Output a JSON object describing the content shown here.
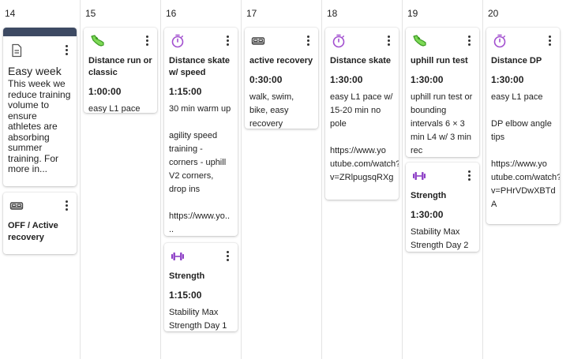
{
  "days": [
    "14",
    "15",
    "16",
    "17",
    "18",
    "19",
    "20"
  ],
  "colors": {
    "run": "#5bc236",
    "timer": "#a24fcf",
    "strength": "#8d3fc6",
    "bed": "#444444",
    "note_header": "#3d4a63"
  },
  "note": {
    "icon": "document-icon",
    "title": "Easy week",
    "body": "This week we reduce training volume to ensure athletes are absorbing summer training. For more in..."
  },
  "cards": {
    "d14_off": {
      "icon": "bed-icon",
      "title": "OFF / Active recovery"
    },
    "d15_run": {
      "icon": "running-shoe-icon",
      "title": "Distance run or classic",
      "duration": "1:00:00",
      "desc": "easy L1 pace"
    },
    "d16_skate": {
      "icon": "stopwatch-icon",
      "title": "Distance skate w/ speed",
      "duration": "1:15:00",
      "desc": "30 min warm up\n\nagility speed training - corners - uphill V2 corners, drop ins\n\nhttps://www.yo..\n.."
    },
    "d16_strength": {
      "icon": "dumbbell-icon",
      "title": "Strength",
      "duration": "1:15:00",
      "desc": "Stability Max Strength Day 1"
    },
    "d17_recovery": {
      "icon": "bed-icon",
      "title": "active recovery",
      "duration": "0:30:00",
      "desc": "walk, swim, bike, easy recovery"
    },
    "d18_skate": {
      "icon": "stopwatch-icon",
      "title": "Distance skate",
      "duration": "1:30:00",
      "desc": "easy L1 pace w/ 15-20 min no pole\n\nhttps://www.yo\nutube.com/watch?\nv=ZRlpugsqRXg"
    },
    "d19_run": {
      "icon": "running-shoe-icon",
      "title": "uphill run test",
      "duration": "1:30:00",
      "desc": "uphill run test or bounding intervals 6 × 3 min L4 w/ 3 min rec"
    },
    "d19_strength": {
      "icon": "dumbbell-icon",
      "title": "Strength",
      "duration": "1:30:00",
      "desc": "Stability Max Strength Day 2"
    },
    "d20_dp": {
      "icon": "stopwatch-icon",
      "title": "Distance DP",
      "duration": "1:30:00",
      "desc": "easy L1 pace\n\nDP elbow angle tips\n\nhttps://www.yo\nutube.com/watch?\nv=PHrVDwXBTd\nA"
    }
  }
}
